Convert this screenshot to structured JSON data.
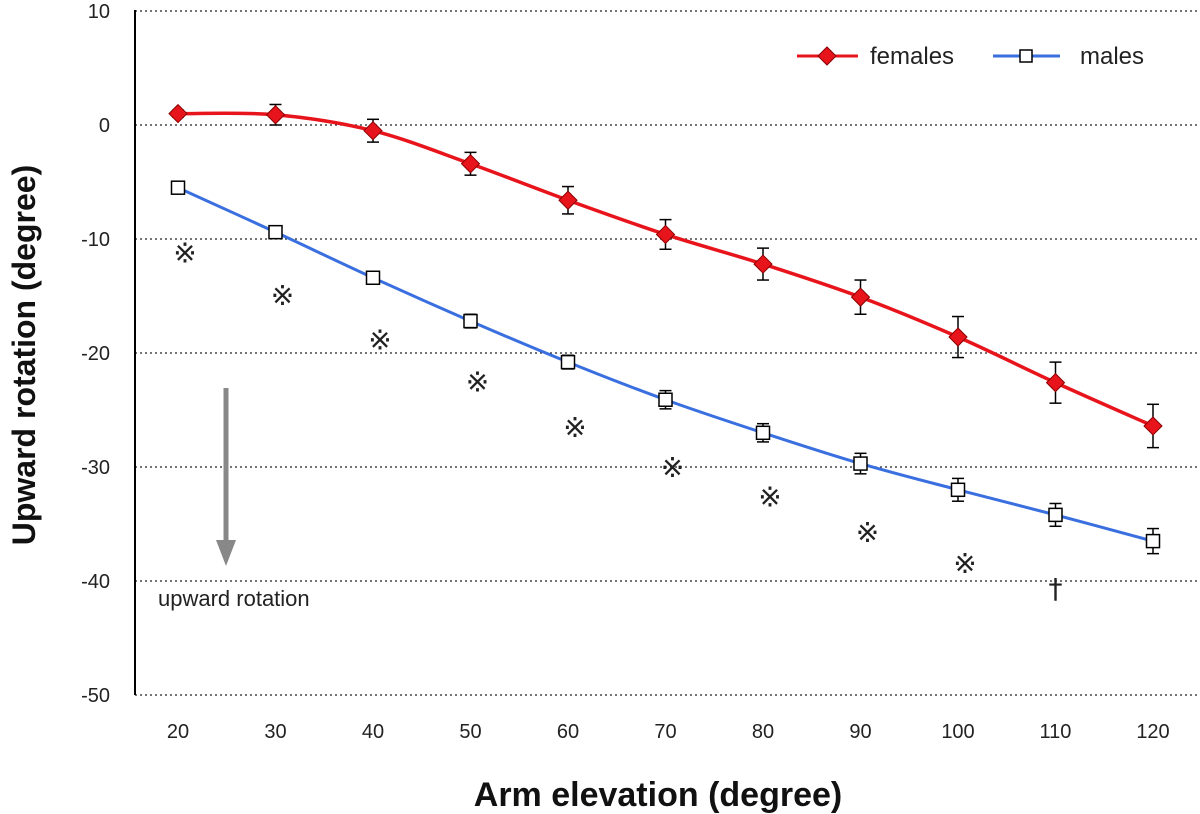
{
  "chart_data": {
    "type": "line",
    "title": "",
    "xlabel": "Arm elevation (degree)",
    "ylabel": "Upward rotation (degree)",
    "x": [
      20,
      30,
      40,
      50,
      60,
      70,
      80,
      90,
      100,
      110,
      120
    ],
    "ylim": [
      -50,
      10
    ],
    "yticks": [
      10,
      0,
      -10,
      -20,
      -30,
      -40,
      -50
    ],
    "grid": "horizontal dotted",
    "legend_position": "top-right",
    "series": [
      {
        "name": "females",
        "color": "#e8141c",
        "marker": "diamond",
        "values": [
          1.0,
          0.9,
          -0.5,
          -3.4,
          -6.6,
          -9.6,
          -12.2,
          -15.1,
          -18.6,
          -22.6,
          -26.4
        ],
        "errors": [
          0.3,
          0.9,
          1.0,
          1.0,
          1.2,
          1.3,
          1.4,
          1.5,
          1.8,
          1.8,
          1.9
        ]
      },
      {
        "name": "males",
        "color": "#3a6fe0",
        "marker": "open-square",
        "values": [
          -5.5,
          -9.4,
          -13.4,
          -17.2,
          -20.8,
          -24.1,
          -27.0,
          -29.7,
          -32.0,
          -34.2,
          -36.5
        ],
        "errors": [
          0.2,
          0.3,
          0.4,
          0.6,
          0.6,
          0.8,
          0.8,
          0.9,
          1.0,
          1.0,
          1.1
        ]
      }
    ],
    "annotations": {
      "arrow_label": "upward rotation",
      "significance_marks": [
        {
          "x": 20,
          "y": -11.2,
          "symbol": "※"
        },
        {
          "x": 30,
          "y": -14.9,
          "symbol": "※"
        },
        {
          "x": 40,
          "y": -18.8,
          "symbol": "※"
        },
        {
          "x": 50,
          "y": -22.5,
          "symbol": "※"
        },
        {
          "x": 60,
          "y": -26.5,
          "symbol": "※"
        },
        {
          "x": 70,
          "y": -30.0,
          "symbol": "※"
        },
        {
          "x": 80,
          "y": -32.6,
          "symbol": "※"
        },
        {
          "x": 90,
          "y": -35.7,
          "symbol": "※"
        },
        {
          "x": 100,
          "y": -38.4,
          "symbol": "※"
        },
        {
          "x": 110,
          "y": -40.6,
          "symbol": "†"
        }
      ]
    }
  }
}
